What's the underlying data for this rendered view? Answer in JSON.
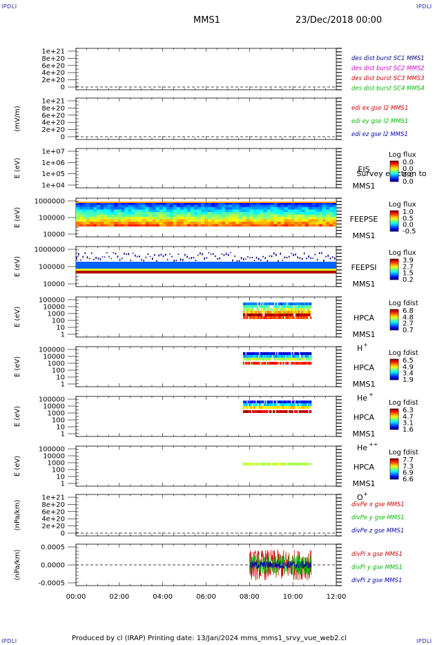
{
  "header": {
    "corner_mark": "IPDLI",
    "spacecraft": "MMS1",
    "date": "23/Dec/2018 00:00"
  },
  "footer": {
    "text": "Produced by cl (IRAP)   Printing date: 13/Jan/2024   mms_mms1_srvy_vue_web2.cl"
  },
  "colors": {
    "sc1": "#00008b",
    "sc2": "#cc00cc",
    "sc3": "#cc0000",
    "sc4": "#00bb00",
    "x_comp": "#cc0000",
    "y_comp": "#00bb00",
    "z_comp": "#0000aa"
  },
  "chart_data": {
    "type": "stacked_time_series_panels",
    "x_axis": {
      "range": [
        "00:00",
        "12:00"
      ],
      "tick_labels": [
        "00:00",
        "02:00",
        "04:00",
        "06:00",
        "08:00",
        "10:00",
        "12:00"
      ]
    },
    "panels": [
      {
        "id": "des-dist",
        "type": "line",
        "ylabel": "",
        "yticks": [
          "1e+21",
          "8e+20",
          "6e+20",
          "4e+20",
          "2e+20",
          "0"
        ],
        "ylim": [
          0,
          1e+21
        ],
        "zero_line": true,
        "legend": [
          {
            "name": "des dist burst SC1 MMS1",
            "color": "#00008b"
          },
          {
            "name": "des dist burst SC2 MMS2",
            "color": "#cc00cc"
          },
          {
            "name": "des dist burst SC3 MMS3",
            "color": "#cc0000"
          },
          {
            "name": "des dist burst SC4 MMS4",
            "color": "#00bb00"
          }
        ],
        "series": []
      },
      {
        "id": "edi-e",
        "type": "line",
        "ylabel": "(mV/m)",
        "yticks": [
          "1e+21",
          "8e+20",
          "6e+20",
          "4e+20",
          "2e+20",
          "0"
        ],
        "ylim": [
          0,
          1e+21
        ],
        "zero_line": true,
        "legend": [
          {
            "name": "edi ex gse l2 MMS1",
            "color": "#cc0000"
          },
          {
            "name": "edi ey gse l2 MMS1",
            "color": "#00bb00"
          },
          {
            "name": "edi ez gse l2 MMS1",
            "color": "#0000aa"
          }
        ],
        "series": []
      },
      {
        "id": "eis",
        "type": "heatmap",
        "ylabel": "E (eV)",
        "yticks": [
          "1e+07",
          "1e+06",
          "1e+05",
          "1e+04"
        ],
        "instrument": "EIS",
        "instrument_extra": "Survey electron to",
        "spacecraft": "MMS1",
        "colorbar": {
          "title": "Log flux",
          "ticks": [
            "0.0",
            "0.0",
            "0.0",
            "0.0"
          ]
        },
        "coverage": null
      },
      {
        "id": "feeps-e",
        "type": "heatmap",
        "ylabel": "E (eV)",
        "yticks": [
          "1000000",
          "100000",
          "10000"
        ],
        "instrument": "FEEPSE",
        "spacecraft": "MMS1",
        "colorbar": {
          "title": "Log flux",
          "ticks": [
            "1.0",
            "0.5",
            "0.0",
            "-0.5"
          ]
        },
        "coverage": {
          "start": 0.0,
          "end": 12.0
        }
      },
      {
        "id": "feeps-i",
        "type": "heatmap",
        "ylabel": "E (eV)",
        "yticks": [
          "1000000",
          "100000",
          "10000"
        ],
        "instrument": "FEEPSI",
        "spacecraft": "MMS1",
        "colorbar": {
          "title": "Log flux",
          "ticks": [
            "3.9",
            "2.7",
            "1.5",
            "0.2"
          ]
        },
        "coverage": {
          "start": 0.0,
          "end": 12.0
        }
      },
      {
        "id": "hpca-h",
        "type": "heatmap",
        "ylabel": "E (eV)",
        "yticks": [
          "100000",
          "10000",
          "1000",
          "100",
          "10",
          "1"
        ],
        "instrument": "HPCA",
        "spacecraft": "MMS1",
        "species": "H",
        "species_charge": "+",
        "colorbar": {
          "title": "Log fdist",
          "ticks": [
            "6.8",
            "4.8",
            "2.7",
            "0.7"
          ]
        },
        "coverage": {
          "start": 7.7,
          "end": 10.85
        }
      },
      {
        "id": "hpca-he1",
        "type": "heatmap",
        "ylabel": "E (eV)",
        "yticks": [
          "100000",
          "10000",
          "1000",
          "100",
          "10",
          "1"
        ],
        "instrument": "HPCA",
        "spacecraft": "MMS1",
        "species": "He",
        "species_charge": "+",
        "colorbar": {
          "title": "Log fdist",
          "ticks": [
            "6.5",
            "4.9",
            "3.4",
            "1.9"
          ]
        },
        "coverage": {
          "start": 7.7,
          "end": 10.85
        }
      },
      {
        "id": "hpca-he2",
        "type": "heatmap",
        "ylabel": "E (eV)",
        "yticks": [
          "100000",
          "10000",
          "1000",
          "100",
          "10",
          "1"
        ],
        "instrument": "HPCA",
        "spacecraft": "MMS1",
        "species": "He",
        "species_charge": "++",
        "colorbar": {
          "title": "Log fdist",
          "ticks": [
            "6.3",
            "4.7",
            "3.1",
            "1.6"
          ]
        },
        "coverage": {
          "start": 7.7,
          "end": 10.85
        }
      },
      {
        "id": "hpca-o",
        "type": "heatmap",
        "ylabel": "E (eV)",
        "yticks": [
          "100000",
          "10000",
          "1000",
          "100",
          "10",
          "1"
        ],
        "instrument": "HPCA",
        "spacecraft": "MMS1",
        "species": "O",
        "species_charge": "+",
        "colorbar": {
          "title": "Log fdist",
          "ticks": [
            "7.7",
            "7.3",
            "6.9",
            "6.6"
          ]
        },
        "coverage": {
          "start": 7.7,
          "end": 10.85
        }
      },
      {
        "id": "divpe",
        "type": "line",
        "ylabel": "(nPa/km)",
        "yticks": [
          "1e+21",
          "8e+20",
          "6e+20",
          "4e+20",
          "2e+20",
          "0"
        ],
        "ylim": [
          0,
          1e+21
        ],
        "zero_line": true,
        "legend": [
          {
            "name": "divPe x gse MMS1",
            "color": "#cc0000"
          },
          {
            "name": "divPe y gse MMS1",
            "color": "#00bb00"
          },
          {
            "name": "divPe z gse MMS1",
            "color": "#0000aa"
          }
        ],
        "series": []
      },
      {
        "id": "divpi",
        "type": "line",
        "ylabel": "(nPa/km)",
        "yticks": [
          "0.0005",
          "0.0000",
          "-0.0005"
        ],
        "ylim": [
          -0.0008,
          0.0008
        ],
        "zero_line": true,
        "legend": [
          {
            "name": "divPi x gse MMS1",
            "color": "#cc0000"
          },
          {
            "name": "divPi y gse MMS1",
            "color": "#00bb00"
          },
          {
            "name": "divPi z gse MMS1",
            "color": "#0000aa"
          }
        ],
        "series": [
          {
            "name": "divPi x gse MMS1",
            "start": 8.0,
            "end": 10.85,
            "amplitude": 0.0006
          },
          {
            "name": "divPi y gse MMS1",
            "start": 8.0,
            "end": 10.85,
            "amplitude": 0.0004
          },
          {
            "name": "divPi z gse MMS1",
            "start": 8.0,
            "end": 10.85,
            "amplitude": 0.00015
          }
        ]
      }
    ]
  }
}
